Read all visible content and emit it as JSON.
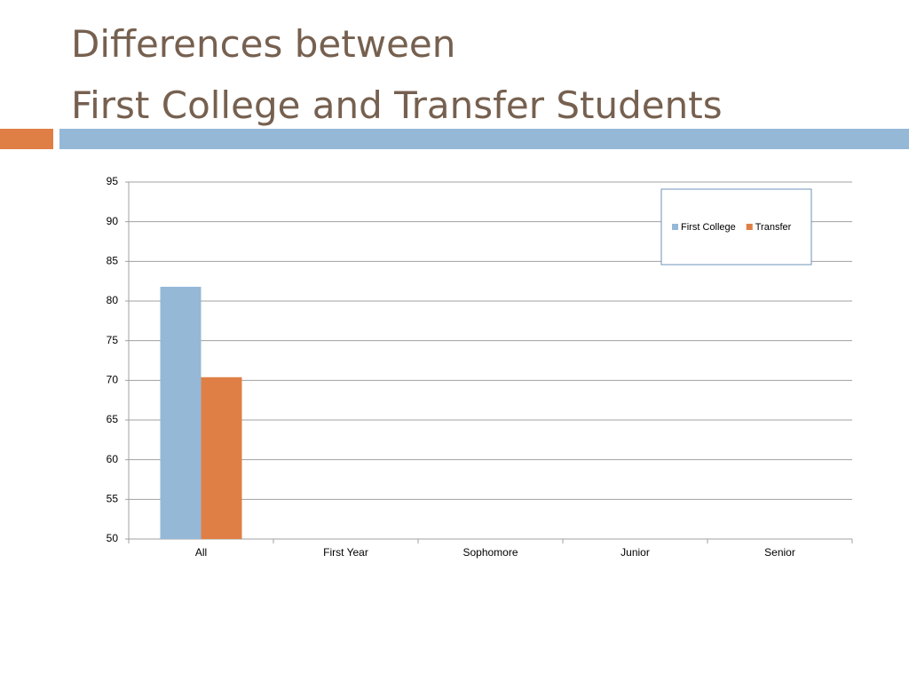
{
  "slide_title": [
    "Differences between",
    "First College and Transfer Students"
  ],
  "chart_data": {
    "type": "bar",
    "categories": [
      "All",
      "First Year",
      "Sophomore",
      "Junior",
      "Senior"
    ],
    "series": [
      {
        "name": "First College",
        "color": "#95b8d7",
        "values": [
          81.8,
          null,
          null,
          null,
          null
        ]
      },
      {
        "name": "Transfer",
        "color": "#e07f45",
        "values": [
          70.4,
          null,
          null,
          null,
          null
        ]
      }
    ],
    "ylim": [
      50,
      95
    ],
    "yticks": [
      50,
      55,
      60,
      65,
      70,
      75,
      80,
      85,
      90,
      95
    ],
    "grid": true,
    "legend": "top-right"
  }
}
